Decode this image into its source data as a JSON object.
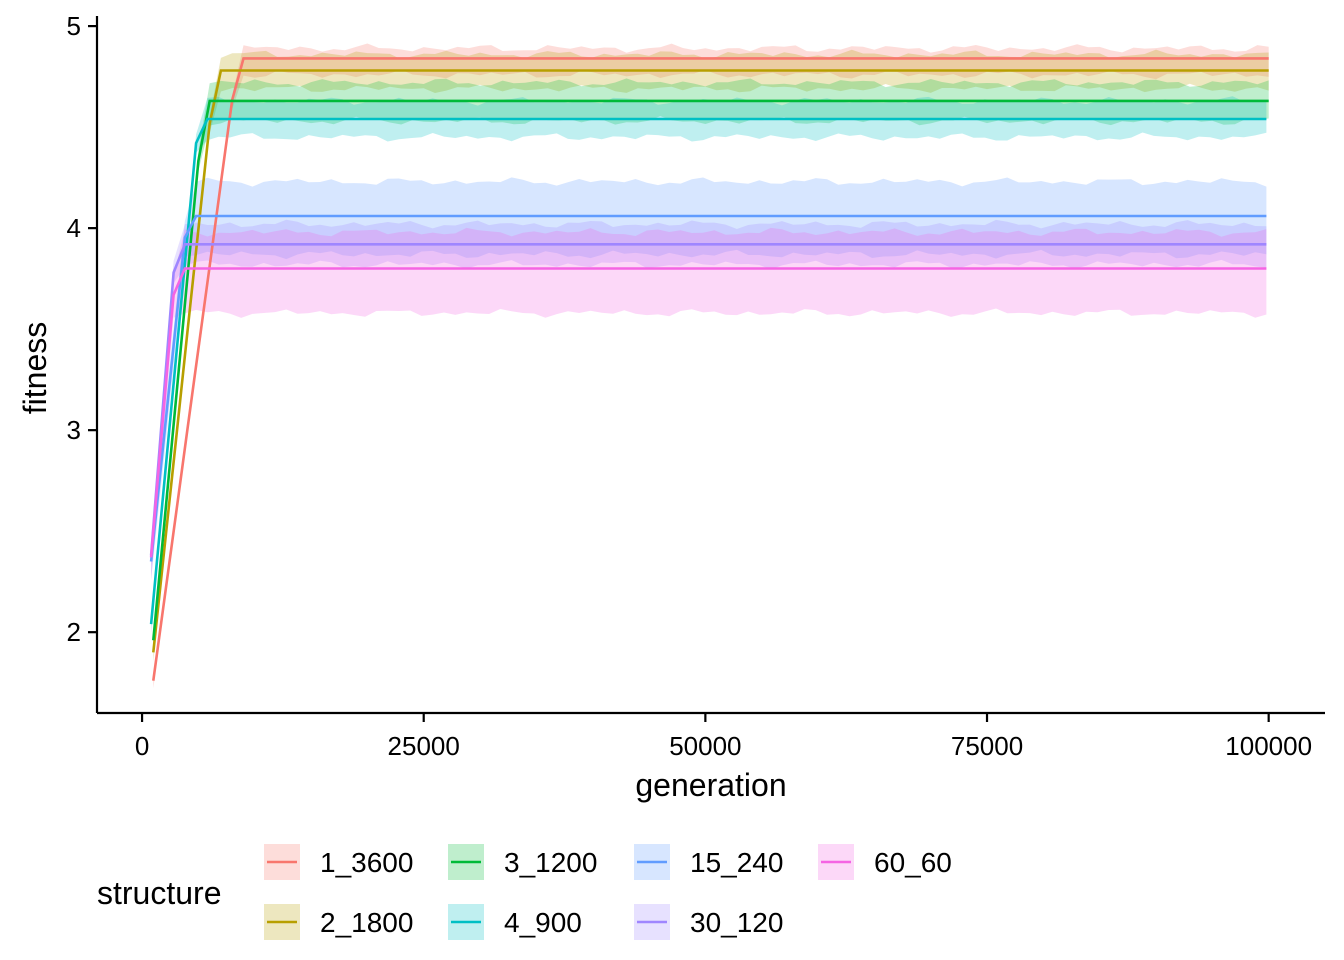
{
  "chart_data": {
    "type": "line",
    "title": "",
    "xlabel": "generation",
    "ylabel": "fitness",
    "xlim": [
      -4000,
      105000
    ],
    "ylim": [
      1.6,
      5.05
    ],
    "xticks": [
      0,
      25000,
      50000,
      75000,
      100000
    ],
    "yticks": [
      2,
      3,
      4,
      5
    ],
    "grid": false,
    "ribbons": true,
    "legend": {
      "title": "structure",
      "position": "bottom"
    },
    "series": [
      {
        "name": "1_3600",
        "color": "#F8766D",
        "start": [
          1000,
          1.76
        ],
        "plateau_x": 8500,
        "plateau": 4.84,
        "band": [
          4.76,
          4.89
        ]
      },
      {
        "name": "2_1800",
        "color": "#B79F00",
        "start": [
          1000,
          1.9
        ],
        "plateau_x": 6500,
        "plateau": 4.78,
        "band": [
          4.69,
          4.86
        ]
      },
      {
        "name": "3_1200",
        "color": "#00BA38",
        "start": [
          1000,
          1.96
        ],
        "plateau_x": 5500,
        "plateau": 4.63,
        "band": [
          4.53,
          4.72
        ]
      },
      {
        "name": "4_900",
        "color": "#00BFC4",
        "start": [
          800,
          2.04
        ],
        "plateau_x": 5000,
        "plateau": 4.54,
        "band": [
          4.45,
          4.63
        ]
      },
      {
        "name": "15_240",
        "color": "#619CFF",
        "start": [
          800,
          2.35
        ],
        "plateau_x": 4000,
        "plateau": 4.06,
        "band": [
          3.87,
          4.23
        ]
      },
      {
        "name": "30_120",
        "color": "#9F86FF",
        "start": [
          800,
          2.38
        ],
        "plateau_x": 3000,
        "plateau": 3.92,
        "band": [
          3.82,
          4.02
        ]
      },
      {
        "name": "60_60",
        "color": "#F564E3",
        "start": [
          800,
          2.37
        ],
        "plateau_x": 3000,
        "plateau": 3.8,
        "band": [
          3.58,
          3.98
        ]
      }
    ]
  }
}
